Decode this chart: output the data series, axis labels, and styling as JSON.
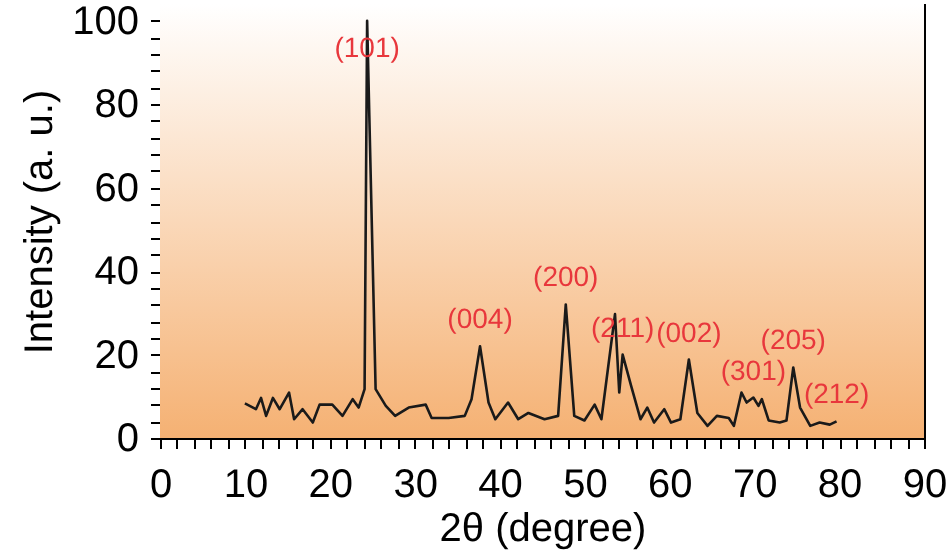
{
  "chart_data": {
    "type": "line",
    "xlabel": "2θ (degree)",
    "ylabel": "Intensity (a. u.)",
    "x": [
      10,
      11.3,
      11.9,
      12.5,
      13.3,
      14.1,
      15.2,
      15.8,
      16.8,
      18,
      18.8,
      20.3,
      21.5,
      22.7,
      23.4,
      24.1,
      24.4,
      25.4,
      26.6,
      27.7,
      29.3,
      31.3,
      32,
      34,
      35.9,
      36.7,
      37.7,
      38.7,
      39.5,
      41,
      42.2,
      43.4,
      45.3,
      46.9,
      47.8,
      48.8,
      50,
      51.2,
      52,
      53.6,
      54.1,
      54.5,
      55.5,
      56.6,
      57.4,
      58.2,
      59.4,
      60.2,
      61.3,
      62.3,
      63.3,
      64.5,
      65.6,
      67,
      67.6,
      68.5,
      69.1,
      69.9,
      70.5,
      70.9,
      71.7,
      73,
      73.8,
      74.6,
      75.4,
      76.6,
      77.7,
      78.9,
      79.7
    ],
    "series": [
      {
        "color": "#1a1a1a",
        "values": [
          8.3,
          6.9,
          9.6,
          5.3,
          9.6,
          6.9,
          10.9,
          4.5,
          6.9,
          3.7,
          8,
          8,
          5.3,
          9.3,
          7.3,
          11.7,
          100,
          11.7,
          7.7,
          5.3,
          7.3,
          8,
          4.8,
          4.8,
          5.3,
          9.3,
          22,
          8.5,
          4.5,
          8.5,
          4.5,
          6,
          4.5,
          5.3,
          32,
          5.3,
          4.2,
          8,
          4.5,
          29.7,
          10.9,
          20,
          12.5,
          4.5,
          7.3,
          3.7,
          6.9,
          3.7,
          4.5,
          18.8,
          6,
          2.9,
          5.3,
          4.8,
          2.9,
          10.9,
          8.5,
          9.7,
          7.7,
          9.3,
          4.2,
          3.7,
          4.2,
          16.9,
          7.3,
          2.9,
          3.7,
          3.2,
          4
        ]
      }
    ],
    "xlim": [
      0,
      90
    ],
    "xticks": [
      0,
      {
        "value": 2,
        "label": null
      },
      {
        "value": 4,
        "label": null
      },
      {
        "value": 6,
        "label": null
      },
      {
        "value": 8,
        "label": null
      },
      10,
      {
        "value": 12,
        "label": null
      },
      {
        "value": 14,
        "label": null
      },
      {
        "value": 16,
        "label": null
      },
      {
        "value": 18,
        "label": null
      },
      20,
      {
        "value": 22,
        "label": null
      },
      {
        "value": 24,
        "label": null
      },
      {
        "value": 26,
        "label": null
      },
      {
        "value": 28,
        "label": null
      },
      30,
      {
        "value": 32,
        "label": null
      },
      {
        "value": 34,
        "label": null
      },
      {
        "value": 36,
        "label": null
      },
      {
        "value": 38,
        "label": null
      },
      40,
      {
        "value": 42,
        "label": null
      },
      {
        "value": 44,
        "label": null
      },
      {
        "value": 46,
        "label": null
      },
      {
        "value": 48,
        "label": null
      },
      50,
      {
        "value": 52,
        "label": null
      },
      {
        "value": 54,
        "label": null
      },
      {
        "value": 56,
        "label": null
      },
      {
        "value": 58,
        "label": null
      },
      60,
      {
        "value": 62,
        "label": null
      },
      {
        "value": 64,
        "label": null
      },
      {
        "value": 66,
        "label": null
      },
      {
        "value": 68,
        "label": null
      },
      70,
      {
        "value": 72,
        "label": null
      },
      {
        "value": 74,
        "label": null
      },
      {
        "value": 76,
        "label": null
      },
      {
        "value": 78,
        "label": null
      },
      80,
      {
        "value": 82,
        "label": null
      },
      {
        "value": 84,
        "label": null
      },
      {
        "value": 86,
        "label": null
      },
      {
        "value": 88,
        "label": null
      },
      90
    ],
    "ylim": [
      0,
      104
    ],
    "yticks": [
      0,
      {
        "value": 4,
        "label": null
      },
      {
        "value": 8,
        "label": null
      },
      {
        "value": 12,
        "label": null
      },
      {
        "value": 16,
        "label": null
      },
      20,
      {
        "value": 24,
        "label": null
      },
      {
        "value": 28,
        "label": null
      },
      {
        "value": 32,
        "label": null
      },
      {
        "value": 36,
        "label": null
      },
      40,
      {
        "value": 44,
        "label": null
      },
      {
        "value": 48,
        "label": null
      },
      {
        "value": 52,
        "label": null
      },
      {
        "value": 56,
        "label": null
      },
      60,
      {
        "value": 64,
        "label": null
      },
      {
        "value": 68,
        "label": null
      },
      {
        "value": 72,
        "label": null
      },
      {
        "value": 76,
        "label": null
      },
      80,
      {
        "value": 84,
        "label": null
      },
      {
        "value": 88,
        "label": null
      },
      {
        "value": 92,
        "label": null
      },
      {
        "value": 96,
        "label": null
      },
      100
    ],
    "grid": false,
    "marker": "none",
    "line_style": "solid",
    "annotations": [
      {
        "text": "(101)",
        "x": 24.4,
        "y": 100
      },
      {
        "text": "(004)",
        "x": 37.7,
        "y": 22
      },
      {
        "text": "(200)",
        "x": 47.8,
        "y": 32
      },
      {
        "text": "(211)",
        "x": 54.5,
        "y": 20
      },
      {
        "text": "(002)",
        "x": 62.3,
        "y": 18.8
      },
      {
        "text": "(301)",
        "x": 69.9,
        "y": 9.7
      },
      {
        "text": "(205)",
        "x": 74.6,
        "y": 16.9
      },
      {
        "text": "(212)",
        "x": 79.7,
        "y": 4
      }
    ]
  }
}
